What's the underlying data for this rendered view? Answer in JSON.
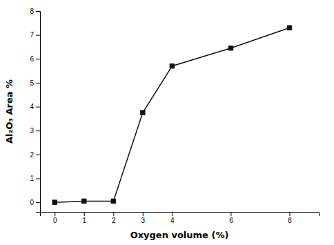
{
  "chart_data": {
    "type": "line",
    "xlabel": "Oxygen volume (%)",
    "ylabel": "Al₂O₃ Area %",
    "x": [
      0,
      1,
      2,
      3,
      4,
      6,
      8
    ],
    "values": [
      0.0,
      0.05,
      0.05,
      3.75,
      5.7,
      6.45,
      7.3
    ],
    "xlim": [
      -0.5,
      9.0
    ],
    "ylim": [
      -0.4,
      8.0
    ],
    "xticks": [
      0,
      1,
      2,
      3,
      4,
      6,
      8
    ],
    "yticks": [
      0,
      1,
      2,
      3,
      4,
      5,
      6,
      7,
      8
    ],
    "color": "#111111",
    "marker": "square",
    "line_style": "solid"
  }
}
